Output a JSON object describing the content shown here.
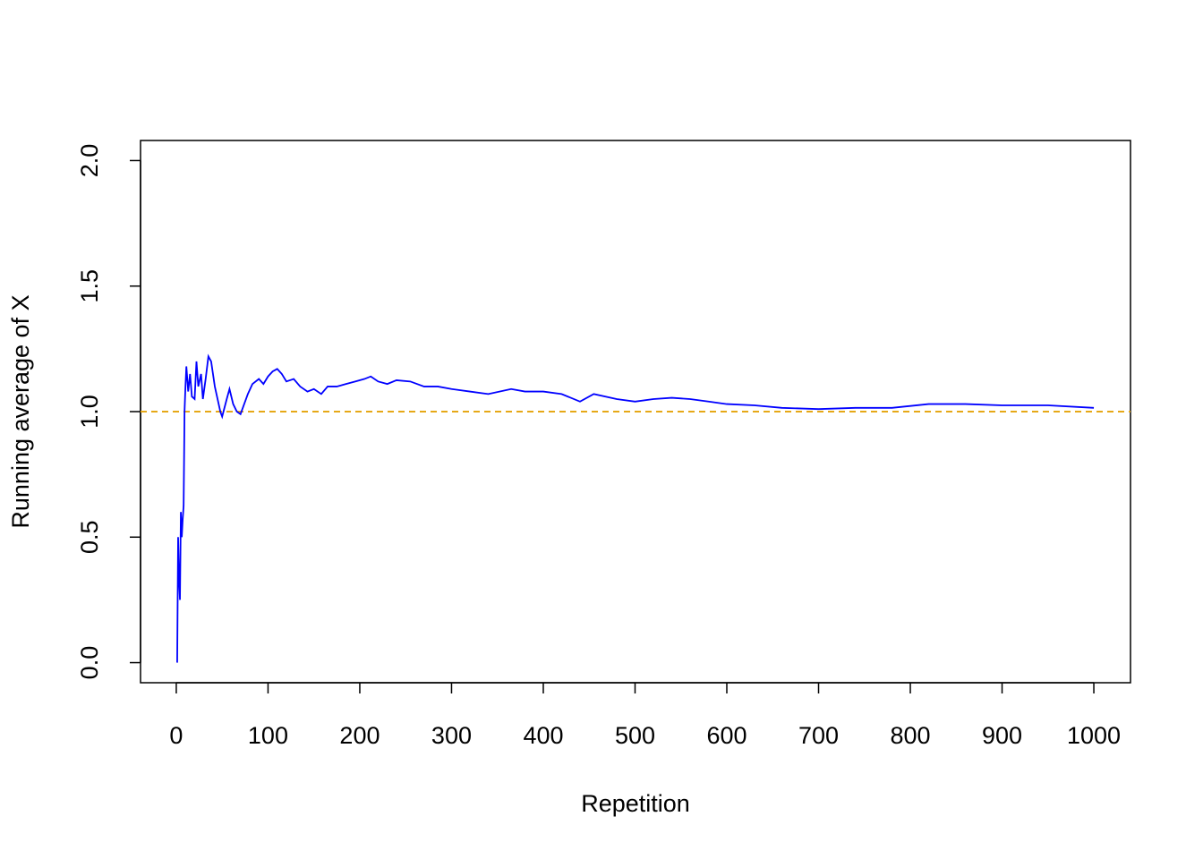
{
  "chart_data": {
    "type": "line",
    "x_label": "Repetition",
    "y_label": "Running average of X",
    "x": [
      1,
      2,
      3,
      4,
      5,
      6,
      7,
      8,
      9,
      10,
      11,
      13,
      15,
      17,
      20,
      22,
      24,
      27,
      29,
      32,
      35,
      38,
      42,
      45,
      48,
      50,
      55,
      58,
      62,
      66,
      70,
      73,
      78,
      83,
      90,
      95,
      100,
      105,
      110,
      115,
      120,
      128,
      135,
      143,
      150,
      158,
      165,
      175,
      185,
      195,
      205,
      212,
      220,
      230,
      240,
      255,
      270,
      285,
      300,
      320,
      340,
      365,
      380,
      400,
      420,
      440,
      455,
      480,
      500,
      520,
      540,
      560,
      580,
      600,
      630,
      660,
      700,
      740,
      780,
      820,
      860,
      900,
      950,
      1000
    ],
    "values": [
      0,
      0.5,
      0.333,
      0.25,
      0.6,
      0.5,
      0.571,
      0.625,
      1.0,
      1.1,
      1.18,
      1.08,
      1.15,
      1.06,
      1.05,
      1.2,
      1.1,
      1.15,
      1.05,
      1.13,
      1.22,
      1.2,
      1.1,
      1.05,
      1.0,
      0.98,
      1.05,
      1.09,
      1.03,
      1.0,
      0.99,
      1.02,
      1.07,
      1.11,
      1.13,
      1.11,
      1.14,
      1.16,
      1.17,
      1.15,
      1.12,
      1.13,
      1.1,
      1.08,
      1.09,
      1.07,
      1.1,
      1.1,
      1.11,
      1.12,
      1.13,
      1.14,
      1.12,
      1.11,
      1.125,
      1.12,
      1.1,
      1.1,
      1.09,
      1.08,
      1.07,
      1.09,
      1.08,
      1.08,
      1.07,
      1.04,
      1.07,
      1.05,
      1.04,
      1.05,
      1.055,
      1.05,
      1.04,
      1.03,
      1.025,
      1.015,
      1.01,
      1.015,
      1.015,
      1.03,
      1.03,
      1.025,
      1.025,
      1.015
    ],
    "color": "#0000ff",
    "reference_line": 1,
    "reference_color": "#e6a817",
    "xlim": [
      -38.96,
      1039.96
    ],
    "xticks": [
      0,
      100,
      200,
      300,
      400,
      500,
      600,
      700,
      800,
      900,
      1000
    ],
    "ylim": [
      -0.08,
      2.08
    ],
    "yticks": [
      {
        "value": 0,
        "label": "0.0"
      },
      0.5,
      {
        "value": 1,
        "label": "1.0"
      },
      1.5,
      {
        "value": 2,
        "label": "2.0"
      }
    ]
  }
}
